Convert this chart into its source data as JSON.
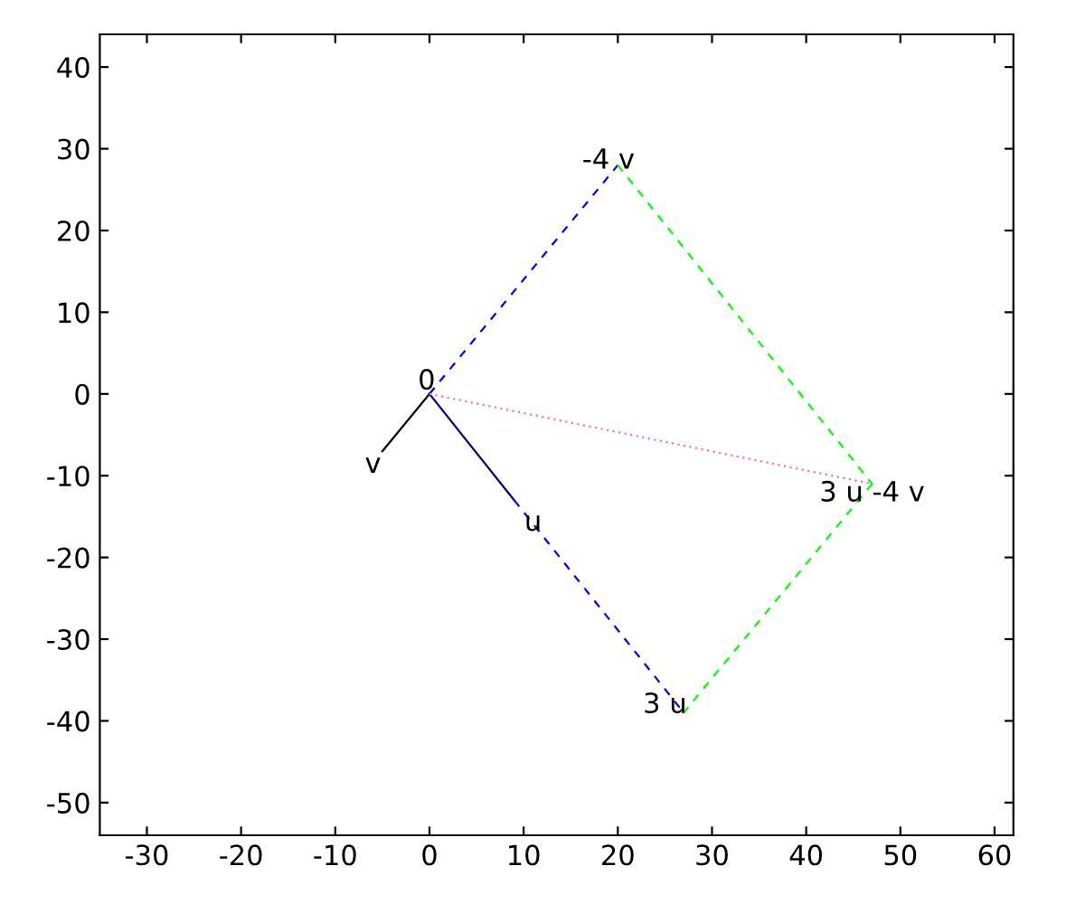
{
  "chart_data": {
    "type": "line",
    "xlim": [
      -35,
      62
    ],
    "ylim": [
      -54,
      44
    ],
    "xticks": [
      -30,
      -20,
      -10,
      0,
      10,
      20,
      30,
      40,
      50,
      60
    ],
    "yticks": [
      -50,
      -40,
      -30,
      -20,
      -10,
      0,
      10,
      20,
      30,
      40
    ],
    "grid": false,
    "legend": false,
    "series": [
      {
        "color": "#000080",
        "x": [
          0,
          9
        ],
        "values": [
          0,
          -13
        ],
        "line_style": "solid"
      },
      {
        "color": "#000000",
        "x": [
          0,
          -5
        ],
        "values": [
          0,
          -7
        ],
        "line_style": "solid"
      },
      {
        "color": "#0000ff",
        "x": [
          0,
          20
        ],
        "values": [
          0,
          28
        ],
        "line_style": "dashed"
      },
      {
        "color": "#0000ff",
        "x": [
          9,
          27
        ],
        "values": [
          -13,
          -39
        ],
        "line_style": "dashed"
      },
      {
        "color": "#00ff00",
        "x": [
          20,
          47
        ],
        "values": [
          28,
          -11
        ],
        "line_style": "dashed"
      },
      {
        "color": "#00ff00",
        "x": [
          47,
          27
        ],
        "values": [
          -11,
          -39
        ],
        "line_style": "dashed"
      },
      {
        "color": "#ff69b4",
        "x": [
          0,
          47
        ],
        "values": [
          0,
          -11
        ],
        "line_style": "dotted"
      }
    ],
    "annotations": [
      {
        "text": "0",
        "x": 0,
        "y": 0
      },
      {
        "text": "u",
        "x": 9,
        "y": -13
      },
      {
        "text": "v",
        "x": -5,
        "y": -7
      },
      {
        "text": "-4 v",
        "x": 20,
        "y": 28
      },
      {
        "text": "3 u",
        "x": 27,
        "y": -39
      },
      {
        "text": "3 u -4 v",
        "x": 47,
        "y": -11
      }
    ]
  }
}
